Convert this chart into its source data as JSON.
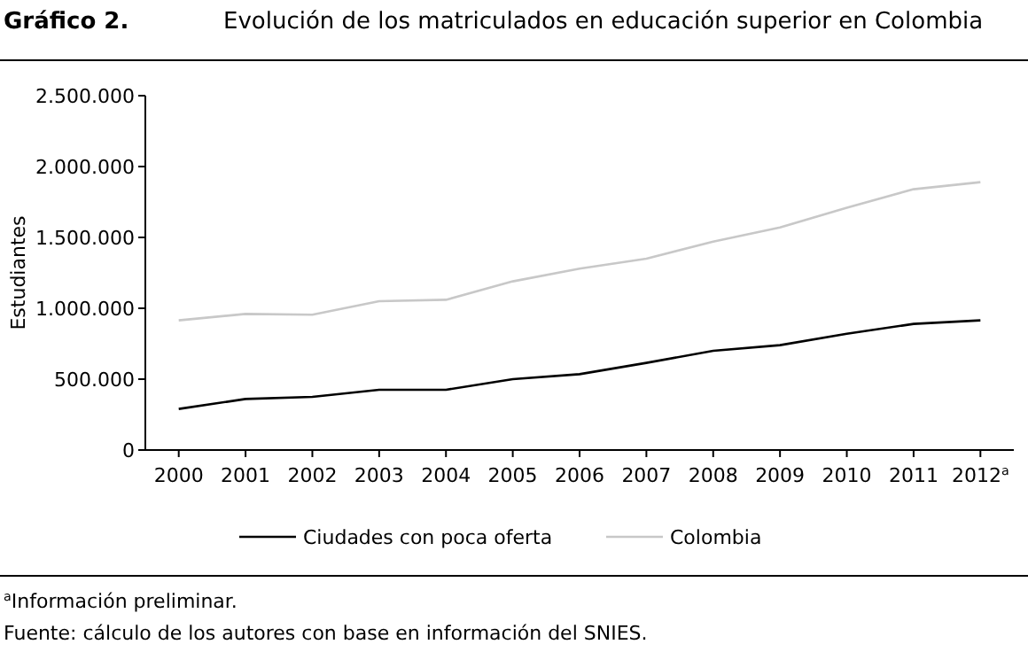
{
  "chart_data": {
    "type": "line",
    "title": "Gráfico 2.",
    "subtitle": "Evolución de los matriculados en educación superior en Colombia",
    "ylabel": "Estudiantes",
    "categories": [
      "2000",
      "2001",
      "2002",
      "2003",
      "2004",
      "2005",
      "2006",
      "2007",
      "2008",
      "2009",
      "2010",
      "2011",
      "2012$^{a}$"
    ],
    "series": [
      {
        "name": "Ciudades con poca oferta",
        "color": "#000000",
        "values": [
          290000,
          360000,
          375000,
          425000,
          425000,
          500000,
          535000,
          615000,
          700000,
          740000,
          820000,
          890000,
          915000
        ]
      },
      {
        "name": "Colombia",
        "color": "#c8c8c8",
        "values": [
          915000,
          960000,
          955000,
          1050000,
          1060000,
          1190000,
          1280000,
          1350000,
          1470000,
          1570000,
          1710000,
          1840000,
          1890000
        ]
      }
    ],
    "ylim": [
      0,
      2500000
    ],
    "yticks": [
      0,
      {
        "value": 500000,
        "label": "500.000"
      },
      {
        "value": 1000000,
        "label": "1.000.000"
      },
      {
        "value": 1500000,
        "label": "1.500.000"
      },
      {
        "value": 2000000,
        "label": "2.000.000"
      },
      {
        "value": 2500000,
        "label": "2.500.000"
      }
    ],
    "legend": "bottom",
    "grid": false,
    "marker": "none",
    "line_style": "solid",
    "annotations": [
      "$^{a}$Información preliminar.",
      "Fuente: cálculo de los autores con base en información del SNIES."
    ]
  }
}
